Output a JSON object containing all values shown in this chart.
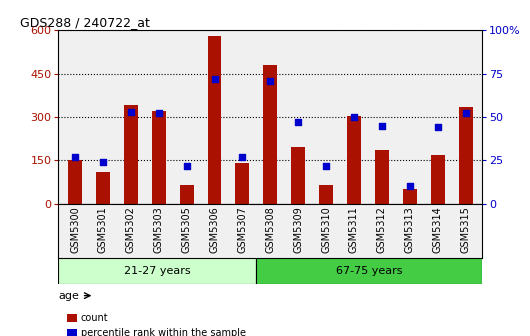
{
  "title": "GDS288 / 240722_at",
  "categories": [
    "GSM5300",
    "GSM5301",
    "GSM5302",
    "GSM5303",
    "GSM5305",
    "GSM5306",
    "GSM5307",
    "GSM5308",
    "GSM5309",
    "GSM5310",
    "GSM5311",
    "GSM5312",
    "GSM5313",
    "GSM5314",
    "GSM5315"
  ],
  "counts": [
    150,
    110,
    340,
    320,
    65,
    580,
    140,
    480,
    195,
    65,
    305,
    185,
    50,
    170,
    335
  ],
  "percentiles": [
    27,
    24,
    53,
    52,
    22,
    72,
    27,
    71,
    47,
    22,
    50,
    45,
    10,
    44,
    52
  ],
  "group1_label": "21-27 years",
  "group2_label": "67-75 years",
  "n_group1": 7,
  "n_group2": 8,
  "age_label": "age",
  "bar_color": "#aa1100",
  "dot_color": "#0000cc",
  "group1_bg": "#ccffcc",
  "group2_bg": "#44cc44",
  "plot_bg": "#f0f0f0",
  "ylim_left": [
    0,
    600
  ],
  "ylim_right": [
    0,
    100
  ],
  "yticks_left": [
    0,
    150,
    300,
    450,
    600
  ],
  "yticks_right": [
    0,
    25,
    50,
    75,
    100
  ],
  "legend_count": "count",
  "legend_pct": "percentile rank within the sample",
  "bar_width": 0.5
}
